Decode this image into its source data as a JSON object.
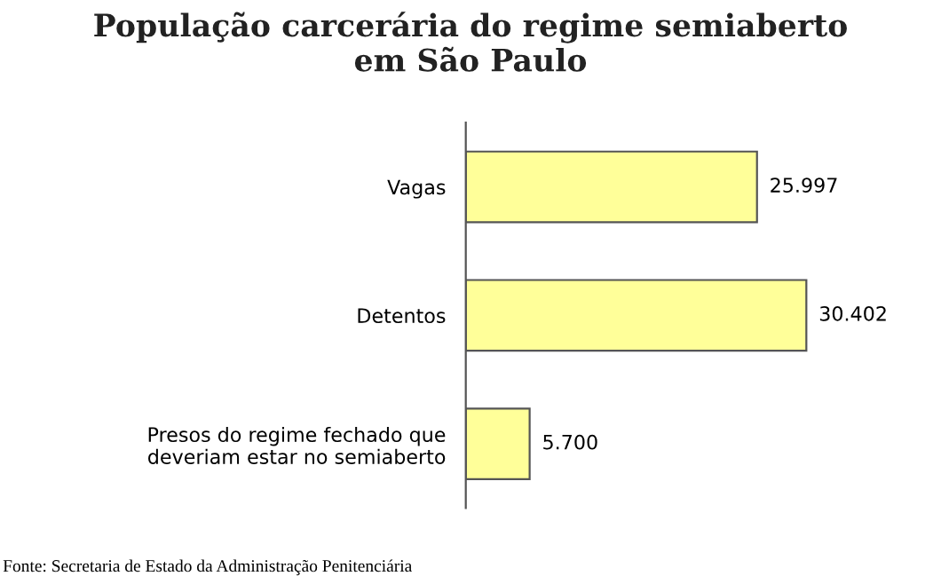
{
  "chart_data": {
    "type": "bar",
    "orientation": "horizontal",
    "title": "População carcerária do regime semiaberto\nem São Paulo",
    "categories": [
      "Vagas",
      "Detentos",
      "Presos do regime fechado que\ndeveriam estar no semiaberto"
    ],
    "values": [
      25997,
      30402,
      5700
    ],
    "value_labels": [
      "25.997",
      "30.402",
      "5.700"
    ],
    "color": "#ffff99",
    "tick_labels": "y",
    "grid": false,
    "annotations": [
      "Fonte: Secretaria de Estado da Administração Penitenciária"
    ]
  }
}
